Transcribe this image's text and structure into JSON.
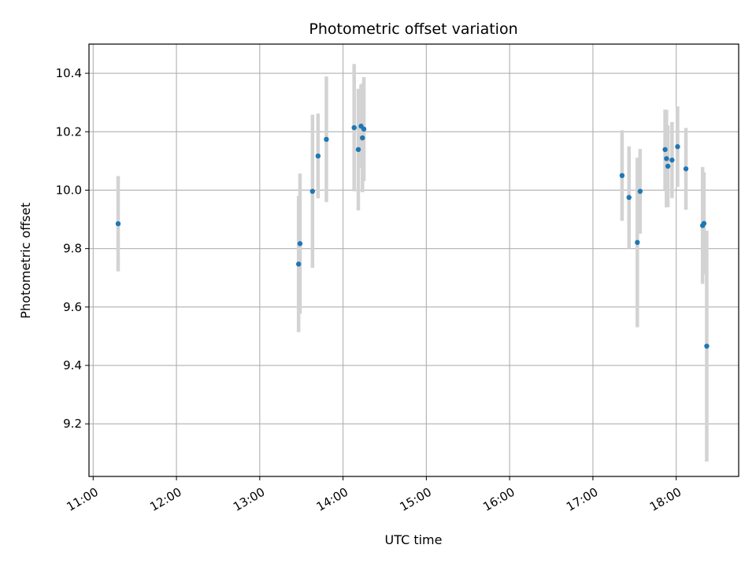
{
  "chart_data": {
    "type": "scatter",
    "title": "Photometric offset variation",
    "xlabel": "UTC time",
    "ylabel": "Photometric offset",
    "xlim": [
      "10:57",
      "18:45"
    ],
    "ylim": [
      9.02,
      10.5
    ],
    "x_ticks": [
      "11:00",
      "12:00",
      "13:00",
      "14:00",
      "15:00",
      "16:00",
      "17:00",
      "18:00"
    ],
    "y_ticks": [
      9.2,
      9.4,
      9.6,
      9.8,
      10.0,
      10.2,
      10.4
    ],
    "grid": true,
    "error_bars": true,
    "x_tick_rotation_deg": 30,
    "colors": {
      "points": "#1f77b4",
      "error_bars": "#d3d3d3",
      "grid": "#b0b0b0"
    },
    "points": [
      {
        "x": "11:18",
        "y": 9.885,
        "err": 0.163
      },
      {
        "x": "13:28",
        "y": 9.747,
        "err": 0.233
      },
      {
        "x": "13:29",
        "y": 9.817,
        "err": 0.24
      },
      {
        "x": "13:38",
        "y": 9.996,
        "err": 0.262
      },
      {
        "x": "13:42",
        "y": 10.117,
        "err": 0.145
      },
      {
        "x": "13:48",
        "y": 10.174,
        "err": 0.215
      },
      {
        "x": "14:08",
        "y": 10.214,
        "err": 0.218
      },
      {
        "x": "14:11",
        "y": 10.139,
        "err": 0.208
      },
      {
        "x": "14:13",
        "y": 10.219,
        "err": 0.143
      },
      {
        "x": "14:14",
        "y": 10.179,
        "err": 0.186
      },
      {
        "x": "14:15",
        "y": 10.209,
        "err": 0.178
      },
      {
        "x": "17:21",
        "y": 10.05,
        "err": 0.155
      },
      {
        "x": "17:26",
        "y": 9.975,
        "err": 0.175
      },
      {
        "x": "17:32",
        "y": 9.821,
        "err": 0.29
      },
      {
        "x": "17:34",
        "y": 9.996,
        "err": 0.145
      },
      {
        "x": "17:52",
        "y": 10.139,
        "err": 0.137
      },
      {
        "x": "17:53",
        "y": 10.108,
        "err": 0.167
      },
      {
        "x": "17:54",
        "y": 10.082,
        "err": 0.14
      },
      {
        "x": "17:57",
        "y": 10.103,
        "err": 0.13
      },
      {
        "x": "18:01",
        "y": 10.149,
        "err": 0.138
      },
      {
        "x": "18:07",
        "y": 10.073,
        "err": 0.14
      },
      {
        "x": "18:19",
        "y": 9.879,
        "err": 0.2
      },
      {
        "x": "18:20",
        "y": 9.886,
        "err": 0.175
      },
      {
        "x": "18:22",
        "y": 9.466,
        "err": 0.395
      }
    ]
  }
}
